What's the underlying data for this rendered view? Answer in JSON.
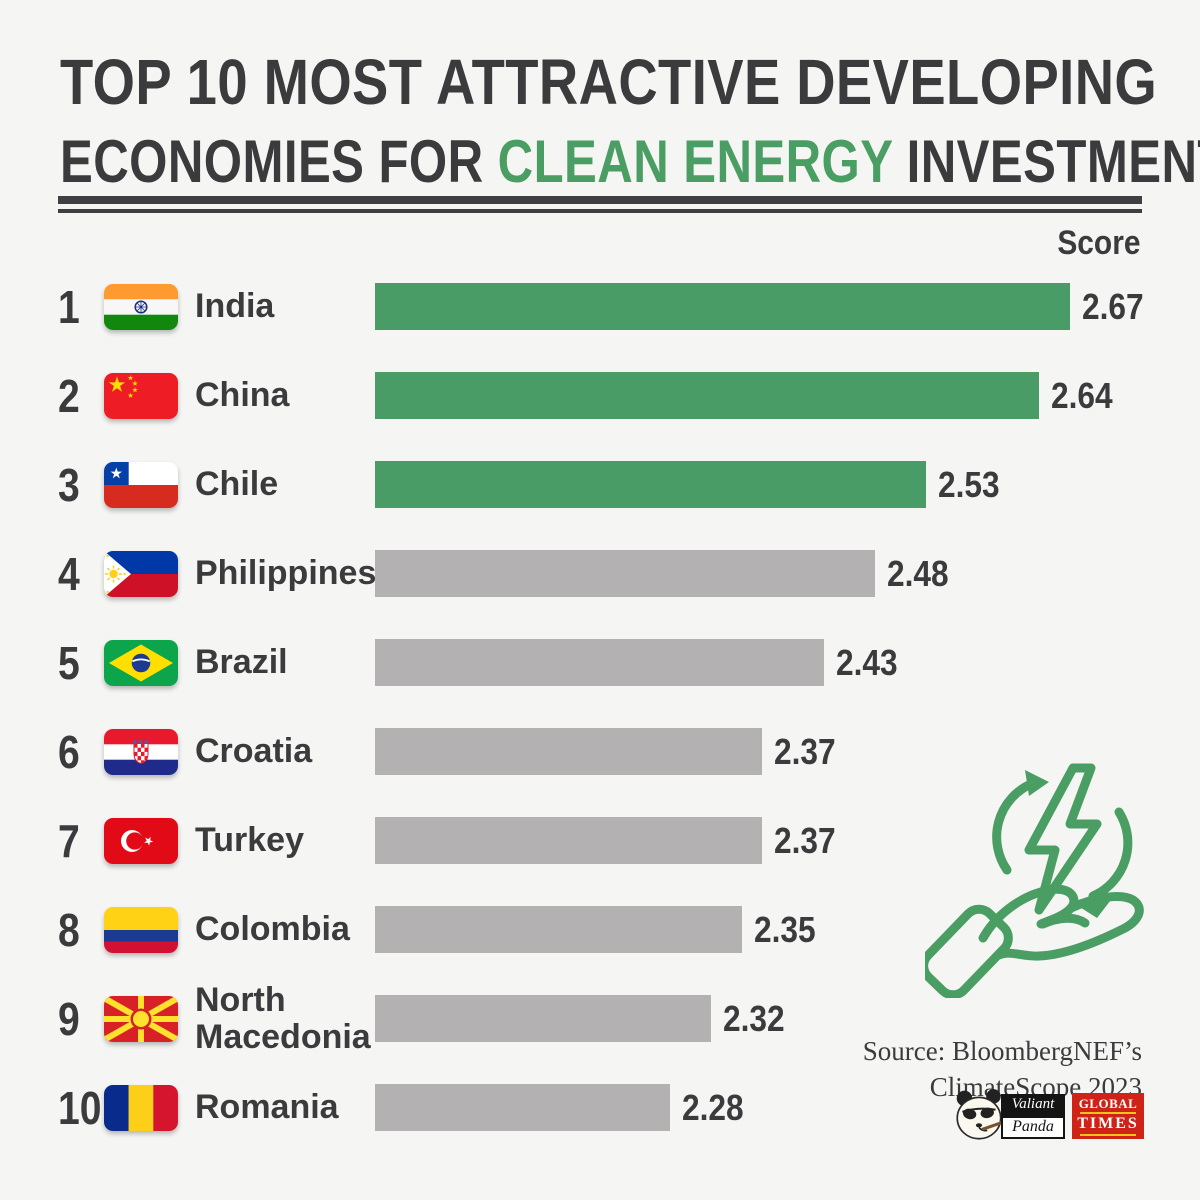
{
  "title": {
    "line1": "TOP 10 MOST ATTRACTIVE DEVELOPING",
    "line2_prefix": "ECONOMIES FOR ",
    "line2_highlight": "CLEAN ENERGY",
    "line2_suffix": " INVESTMENT"
  },
  "score_header": "Score",
  "colors": {
    "background": "#f5f5f3",
    "text_dark": "#3b3b3d",
    "accent_green": "#4a9e63",
    "bar_green": "#4a9c66",
    "bar_gray": "#b3b1b2"
  },
  "rows": [
    {
      "rank": "1",
      "country": "India",
      "flag": "india-flag",
      "score": "2.67",
      "bar_color": "#4a9c66"
    },
    {
      "rank": "2",
      "country": "China",
      "flag": "china-flag",
      "score": "2.64",
      "bar_color": "#4a9c66"
    },
    {
      "rank": "3",
      "country": "Chile",
      "flag": "chile-flag",
      "score": "2.53",
      "bar_color": "#4a9c66"
    },
    {
      "rank": "4",
      "country": "Philippines",
      "flag": "philippines-flag",
      "score": "2.48",
      "bar_color": "#b3b1b2"
    },
    {
      "rank": "5",
      "country": "Brazil",
      "flag": "brazil-flag",
      "score": "2.43",
      "bar_color": "#b3b1b2"
    },
    {
      "rank": "6",
      "country": "Croatia",
      "flag": "croatia-flag",
      "score": "2.37",
      "bar_color": "#b3b1b2"
    },
    {
      "rank": "7",
      "country": "Turkey",
      "flag": "turkey-flag",
      "score": "2.37",
      "bar_color": "#b3b1b2"
    },
    {
      "rank": "8",
      "country": "Colombia",
      "flag": "colombia-flag",
      "score": "2.35",
      "bar_color": "#b3b1b2"
    },
    {
      "rank": "9",
      "country": "North Macedonia",
      "flag": "north-macedonia-flag",
      "score": "2.32",
      "bar_color": "#b3b1b2"
    },
    {
      "rank": "10",
      "country": "Romania",
      "flag": "romania-flag",
      "score": "2.28",
      "bar_color": "#b3b1b2"
    }
  ],
  "chart_data": {
    "type": "bar",
    "orientation": "horizontal",
    "title": "Top 10 most attractive developing economies for clean energy investment",
    "value_label": "Score",
    "categories": [
      "India",
      "China",
      "Chile",
      "Philippines",
      "Brazil",
      "Croatia",
      "Turkey",
      "Colombia",
      "North Macedonia",
      "Romania"
    ],
    "values": [
      2.67,
      2.64,
      2.53,
      2.48,
      2.43,
      2.37,
      2.37,
      2.35,
      2.32,
      2.28
    ],
    "highlighted_categories": [
      "India",
      "China",
      "Chile"
    ],
    "bar_colors": {
      "top3": "#4a9c66",
      "others": "#b3b1b2"
    },
    "grid": false,
    "legend": false
  },
  "source": {
    "line1": "Source: BloombergNEF’s",
    "line2": "ClimateScope 2023"
  },
  "logos": {
    "valiant_panda": {
      "name": "Valiant Panda",
      "top": "Valiant",
      "bottom": "Panda"
    },
    "global_times": {
      "name": "Global Times",
      "top": "GLOBAL",
      "bottom": "TIMES"
    }
  },
  "icon": {
    "name": "clean-energy-hand-icon",
    "color": "#4a9e63"
  }
}
